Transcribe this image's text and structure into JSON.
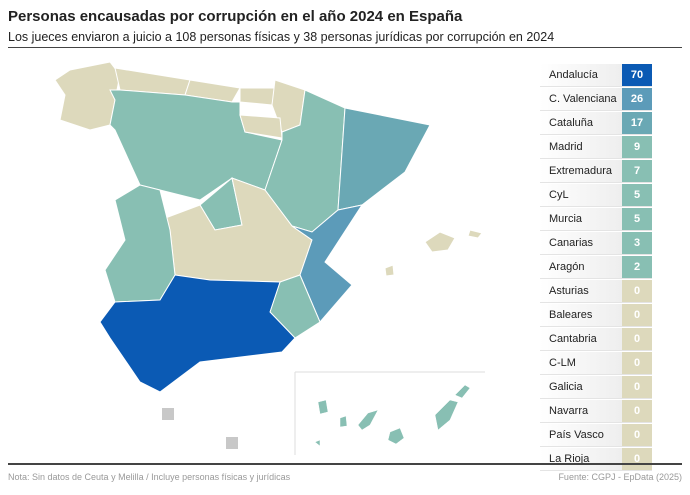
{
  "title": "Personas encausadas por corrupción en el año 2024 en España",
  "subtitle": "Los jueces enviaron a juicio a 108 personas físicas y 38 personas jurídicas por corrupción en 2024",
  "colors": {
    "c70": "#0b5ab4",
    "c26": "#5c9bb9",
    "c17": "#6aa8b4",
    "low": "#88bfb3",
    "zero": "#ddd9bc",
    "nodata": "#c8c8c8"
  },
  "regions": [
    {
      "name": "Andalucía",
      "value": 70
    },
    {
      "name": "C. Valenciana",
      "value": 26
    },
    {
      "name": "Cataluña",
      "value": 17
    },
    {
      "name": "Madrid",
      "value": 9
    },
    {
      "name": "Extremadura",
      "value": 7
    },
    {
      "name": "CyL",
      "value": 5
    },
    {
      "name": "Murcia",
      "value": 5
    },
    {
      "name": "Canarias",
      "value": 3
    },
    {
      "name": "Aragón",
      "value": 2
    },
    {
      "name": "Asturias",
      "value": 0
    },
    {
      "name": "Baleares",
      "value": 0
    },
    {
      "name": "Cantabria",
      "value": 0
    },
    {
      "name": "C-LM",
      "value": 0
    },
    {
      "name": "Galicia",
      "value": 0
    },
    {
      "name": "Navarra",
      "value": 0
    },
    {
      "name": "País Vasco",
      "value": 0
    },
    {
      "name": "La Rioja",
      "value": 0
    }
  ],
  "note": "Nota: Sin datos de Ceuta y Melilla / Incluye personas físicas y jurídicas",
  "source": "Fuente: CGPJ - EpData (2025)"
}
